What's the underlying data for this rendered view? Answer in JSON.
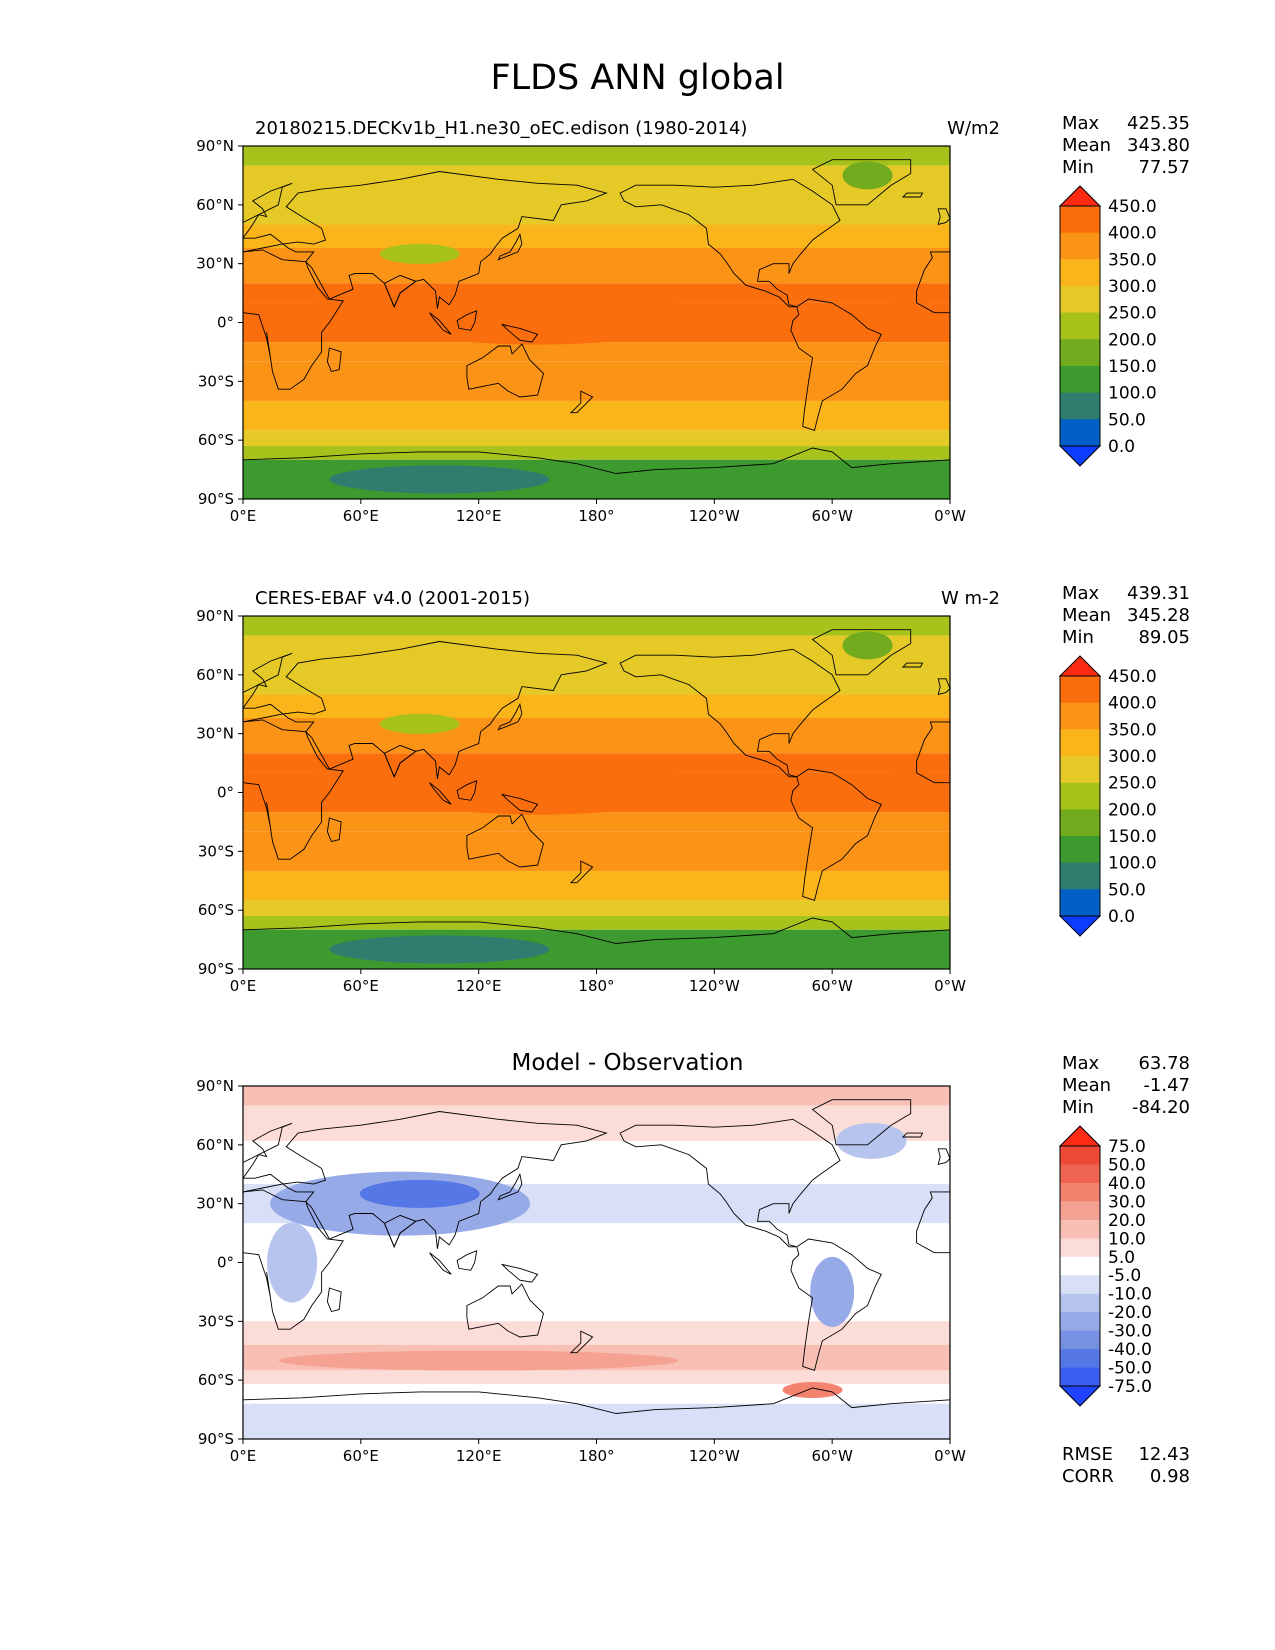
{
  "figure": {
    "title": "FLDS ANN global"
  },
  "axes": {
    "lat_labels": [
      "90°N",
      "60°N",
      "30°N",
      "0°",
      "30°S",
      "60°S",
      "90°S"
    ],
    "lon_labels": [
      "0°E",
      "60°E",
      "120°E",
      "180°",
      "120°W",
      "60°W",
      "0°W"
    ]
  },
  "colors": {
    "abs_levels": [
      "#0a3dff",
      "#0060c8",
      "#2e7d6e",
      "#3c9a2e",
      "#72ac1e",
      "#a8c21c",
      "#e4c927",
      "#fab51b",
      "#fb9317",
      "#fb6e0e",
      "#ff2a12"
    ],
    "diff_levels": [
      "#1f43ff",
      "#3b5ef2",
      "#5677e6",
      "#7890e2",
      "#97aae8",
      "#b7c5ee",
      "#d8dff6",
      "#ffffff",
      "#fbdcd6",
      "#f8c0b4",
      "#f5a293",
      "#f3836f",
      "#ef6450",
      "#ed4a36",
      "#ff2b12"
    ],
    "coastline": "#000000"
  },
  "panels": [
    {
      "id": "test",
      "title_left": "20180215.DECKv1b_H1.ne30_oEC.edison (1980-2014)",
      "title_right": "W/m2",
      "stats": [
        {
          "label": "Max",
          "value": "425.35"
        },
        {
          "label": "Mean",
          "value": "343.80"
        },
        {
          "label": "Min",
          "value": "77.57"
        }
      ],
      "colorbar_ticks": [
        "450.0",
        "400.0",
        "350.0",
        "300.0",
        "250.0",
        "200.0",
        "150.0",
        "100.0",
        "50.0",
        "0.0"
      ]
    },
    {
      "id": "reference",
      "title_left": "CERES-EBAF v4.0 (2001-2015)",
      "title_right": "W m-2",
      "stats": [
        {
          "label": "Max",
          "value": "439.31"
        },
        {
          "label": "Mean",
          "value": "345.28"
        },
        {
          "label": "Min",
          "value": "89.05"
        }
      ],
      "colorbar_ticks": [
        "450.0",
        "400.0",
        "350.0",
        "300.0",
        "250.0",
        "200.0",
        "150.0",
        "100.0",
        "50.0",
        "0.0"
      ]
    },
    {
      "id": "diff",
      "title_center": "Model - Observation",
      "stats": [
        {
          "label": "Max",
          "value": "63.78"
        },
        {
          "label": "Mean",
          "value": "-1.47"
        },
        {
          "label": "Min",
          "value": "-84.20"
        }
      ],
      "colorbar_ticks": [
        "75.0",
        "50.0",
        "40.0",
        "30.0",
        "20.0",
        "10.0",
        "5.0",
        "-5.0",
        "-10.0",
        "-20.0",
        "-30.0",
        "-40.0",
        "-50.0",
        "-75.0"
      ],
      "extra_stats": [
        {
          "label": "RMSE",
          "value": "12.43"
        },
        {
          "label": "CORR",
          "value": "0.98"
        }
      ]
    }
  ]
}
